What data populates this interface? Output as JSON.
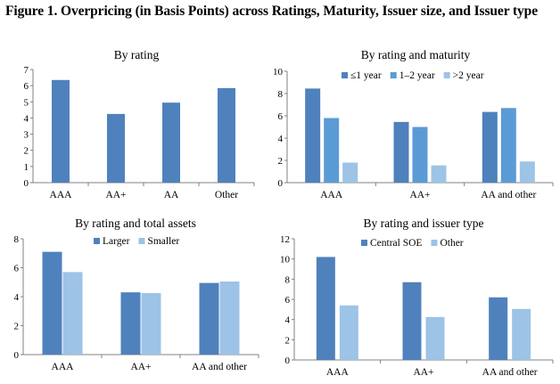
{
  "figure_title": "Figure 1. Overpricing (in Basis Points) across Ratings, Maturity, Issuer size, and Issuer type",
  "colors": {
    "dark": "#4f81bd",
    "mid": "#5b9bd5",
    "light": "#9dc3e6"
  },
  "chart_data": [
    {
      "type": "bar",
      "title": "By rating",
      "categories": [
        "AAA",
        "AA+",
        "AA",
        "Other"
      ],
      "series": [
        {
          "values": [
            6.35,
            4.25,
            4.95,
            5.85
          ],
          "color": "#4f81bd"
        }
      ],
      "ylim": [
        0,
        7
      ],
      "yticks": [
        0,
        1,
        2,
        3,
        4,
        5,
        6,
        7
      ],
      "legend": "none",
      "grid": false
    },
    {
      "type": "bar",
      "title": "By rating and maturity",
      "categories": [
        "AAA",
        "AA+",
        "AA and other"
      ],
      "series": [
        {
          "name": "≤1 year",
          "values": [
            8.45,
            5.45,
            6.35
          ],
          "color": "#4f81bd"
        },
        {
          "name": "1–2 year",
          "values": [
            5.8,
            5.0,
            6.7
          ],
          "color": "#5b9bd5"
        },
        {
          "name": ">2 year",
          "values": [
            1.8,
            1.55,
            1.9
          ],
          "color": "#9dc3e6"
        }
      ],
      "ylim": [
        0,
        10
      ],
      "yticks": [
        0,
        2,
        4,
        6,
        8,
        10
      ],
      "legend": "top",
      "grid": false
    },
    {
      "type": "bar",
      "title": "By rating and total assets",
      "categories": [
        "AAA",
        "AA+",
        "AA and other"
      ],
      "series": [
        {
          "name": "Larger",
          "values": [
            7.1,
            4.3,
            4.95
          ],
          "color": "#4f81bd"
        },
        {
          "name": "Smaller",
          "values": [
            5.7,
            4.25,
            5.05
          ],
          "color": "#9dc3e6"
        }
      ],
      "ylim": [
        0,
        8
      ],
      "yticks": [
        0,
        2,
        4,
        6,
        8
      ],
      "legend": "top",
      "grid": false
    },
    {
      "type": "bar",
      "title": "By rating and issuer type",
      "categories": [
        "AAA",
        "AA+",
        "AA and other"
      ],
      "series": [
        {
          "name": "Central SOE",
          "values": [
            10.2,
            7.7,
            6.2
          ],
          "color": "#4f81bd"
        },
        {
          "name": "Other",
          "values": [
            5.4,
            4.25,
            5.05
          ],
          "color": "#9dc3e6"
        }
      ],
      "ylim": [
        0,
        12
      ],
      "yticks": [
        0,
        2,
        4,
        6,
        8,
        10,
        12
      ],
      "legend": "top",
      "grid": false
    }
  ]
}
